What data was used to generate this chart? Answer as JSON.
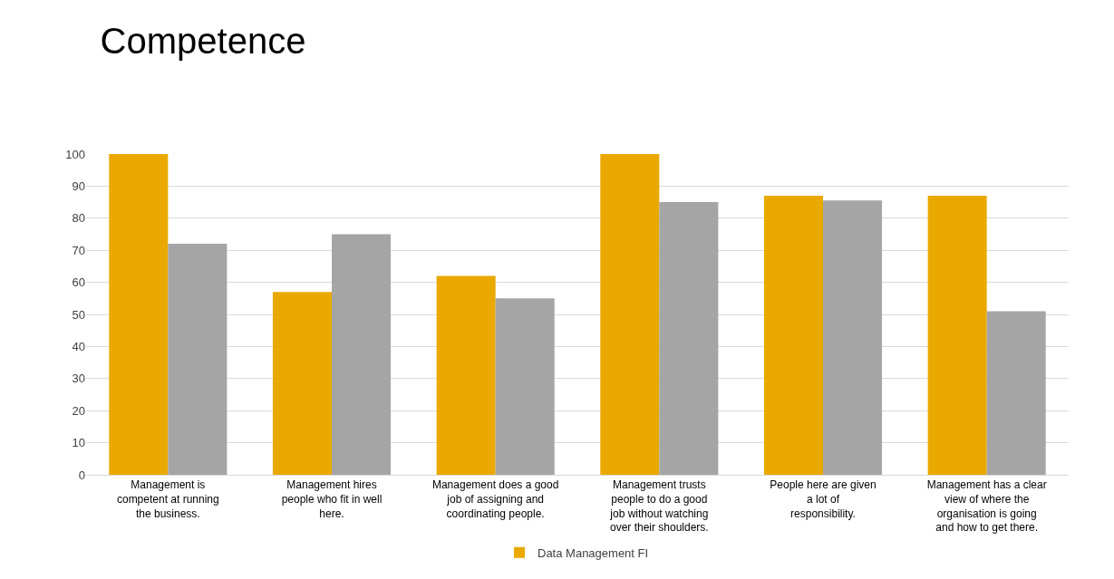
{
  "chart_data": {
    "type": "bar",
    "title": "Competence",
    "categories": [
      "Management is competent at running the business.",
      "Management hires people who fit in well here.",
      "Management does a good job of assigning and coordinating people.",
      "Management trusts people to do a good job without watching over their shoulders.",
      "People here are given a lot of responsibility.",
      "Management has a clear view of where the organisation is going and how to get there."
    ],
    "series": [
      {
        "name": "Data Management FI",
        "color": "#eaa900",
        "values": [
          100,
          57,
          62,
          100,
          87,
          87
        ]
      },
      {
        "color": "#a5a5a5",
        "values": [
          72,
          75,
          55,
          85,
          85.5,
          51
        ]
      }
    ],
    "ylim": [
      0,
      100
    ],
    "yticks": [
      0,
      10,
      20,
      30,
      40,
      50,
      60,
      70,
      80,
      90,
      100
    ],
    "grid": "y",
    "legend": "bottom"
  }
}
